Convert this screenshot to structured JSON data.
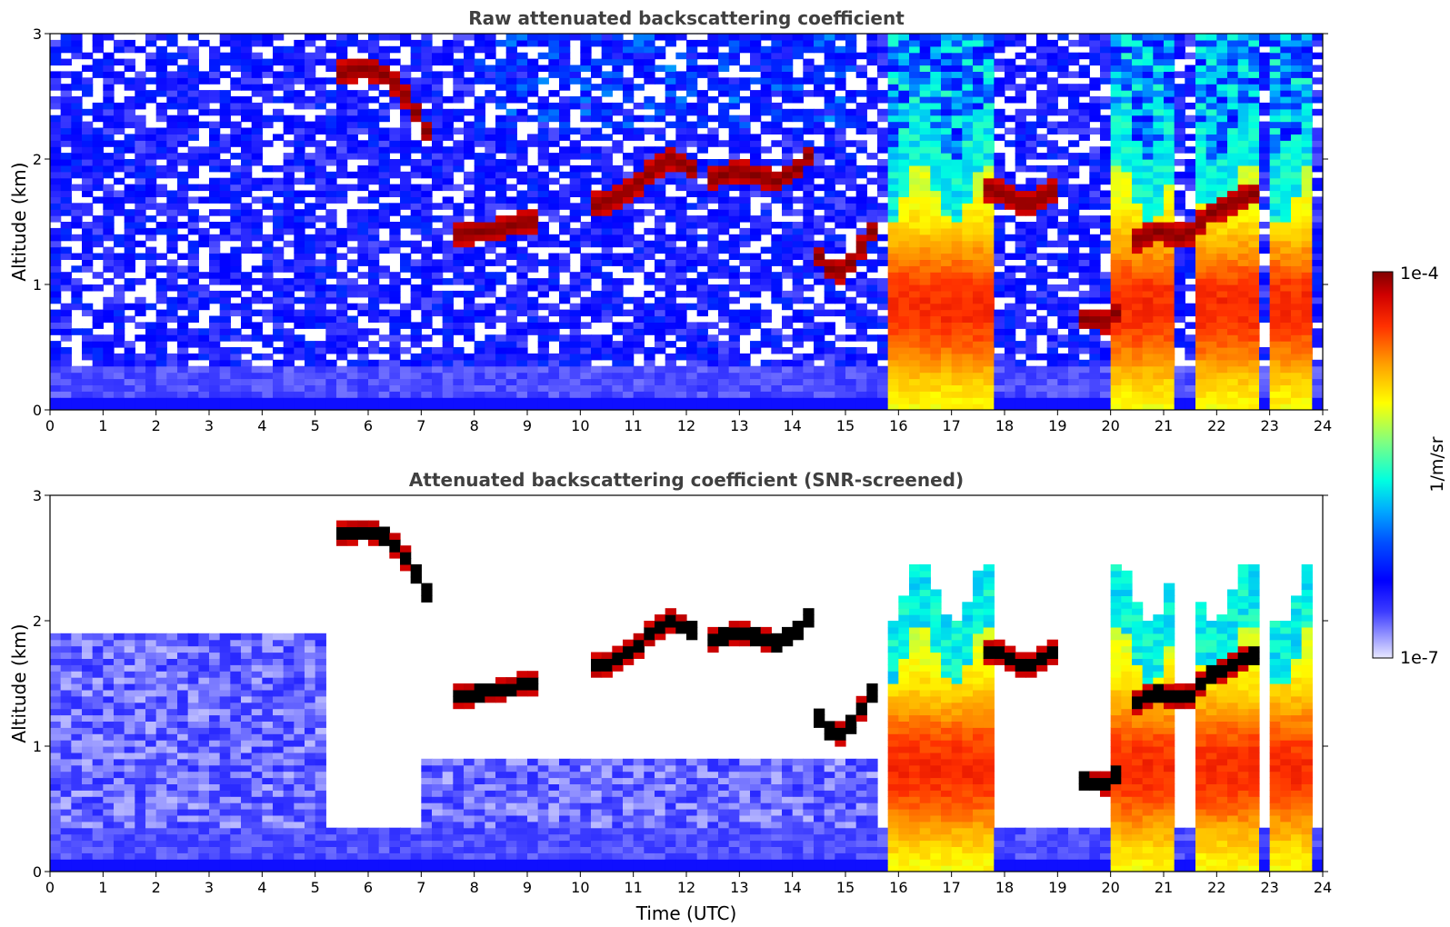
{
  "chart_data": [
    {
      "type": "heatmap",
      "title": "Raw attenuated backscattering coefficient",
      "xlabel": "",
      "ylabel": "Altitude (km)",
      "xlim": [
        0,
        24
      ],
      "ylim": [
        0,
        3
      ],
      "xticks": [
        "0",
        "1",
        "2",
        "3",
        "4",
        "5",
        "6",
        "7",
        "8",
        "9",
        "10",
        "11",
        "12",
        "13",
        "14",
        "15",
        "16",
        "17",
        "18",
        "19",
        "20",
        "21",
        "22",
        "23",
        "24"
      ],
      "yticks": [
        "0",
        "1",
        "2",
        "3"
      ],
      "screened": false,
      "features": {
        "aerosol_layer_top_km": 0.35,
        "surface_layer_km": 0.08,
        "cloud_segments": [
          {
            "t": [
              5.3,
              5.7,
              6.1,
              6.5,
              6.8,
              7.0
            ],
            "z": [
              2.65,
              2.7,
              2.68,
              2.55,
              2.35,
              2.2
            ]
          },
          {
            "t": [
              7.6,
              8.0,
              8.4,
              8.8,
              9.1
            ],
            "z": [
              1.38,
              1.4,
              1.42,
              1.47,
              1.48
            ]
          },
          {
            "t": [
              10.1,
              10.5,
              10.9,
              11.3,
              11.6,
              11.9,
              12.1
            ],
            "z": [
              1.6,
              1.65,
              1.75,
              1.9,
              1.98,
              1.92,
              1.88
            ]
          },
          {
            "t": [
              12.4,
              12.8,
              13.2,
              13.6,
              14.0,
              14.2
            ],
            "z": [
              1.82,
              1.88,
              1.85,
              1.8,
              1.9,
              2.0
            ]
          },
          {
            "t": [
              14.4,
              14.7,
              15.0,
              15.4
            ],
            "z": [
              1.2,
              1.05,
              1.15,
              1.4
            ]
          },
          {
            "t": [
              17.5,
              17.9,
              18.3,
              18.8
            ],
            "z": [
              1.75,
              1.7,
              1.6,
              1.72
            ]
          },
          {
            "t": [
              19.4,
              19.8,
              20.0
            ],
            "z": [
              0.7,
              0.68,
              0.75
            ]
          },
          {
            "t": [
              20.3,
              20.8,
              21.3,
              21.8,
              22.3,
              22.6
            ],
            "z": [
              1.32,
              1.4,
              1.35,
              1.55,
              1.65,
              1.7
            ]
          }
        ],
        "deep_cloud_intervals": [
          [
            15.6,
            17.6
          ],
          [
            19.9,
            21.0
          ],
          [
            21.4,
            22.7
          ],
          [
            22.9,
            23.7
          ]
        ]
      }
    },
    {
      "type": "heatmap",
      "title": "Attenuated backscattering coefficient (SNR-screened)",
      "xlabel": "Time (UTC)",
      "ylabel": "Altitude (km)",
      "xlim": [
        0,
        24
      ],
      "ylim": [
        0,
        3
      ],
      "xticks": [
        "0",
        "1",
        "2",
        "3",
        "4",
        "5",
        "6",
        "7",
        "8",
        "9",
        "10",
        "11",
        "12",
        "13",
        "14",
        "15",
        "16",
        "17",
        "18",
        "19",
        "20",
        "21",
        "22",
        "23",
        "24"
      ],
      "yticks": [
        "0",
        "1",
        "2",
        "3"
      ],
      "screened": true
    }
  ],
  "colorbar": {
    "label": "1/m/sr",
    "max_label": "1e-4",
    "min_label": "1e-7",
    "colormap": "jet-with-light-purple-low-end",
    "under_color": "#ffffff"
  },
  "colors": {
    "title_text": "#404040",
    "axis_text": "#000000"
  }
}
